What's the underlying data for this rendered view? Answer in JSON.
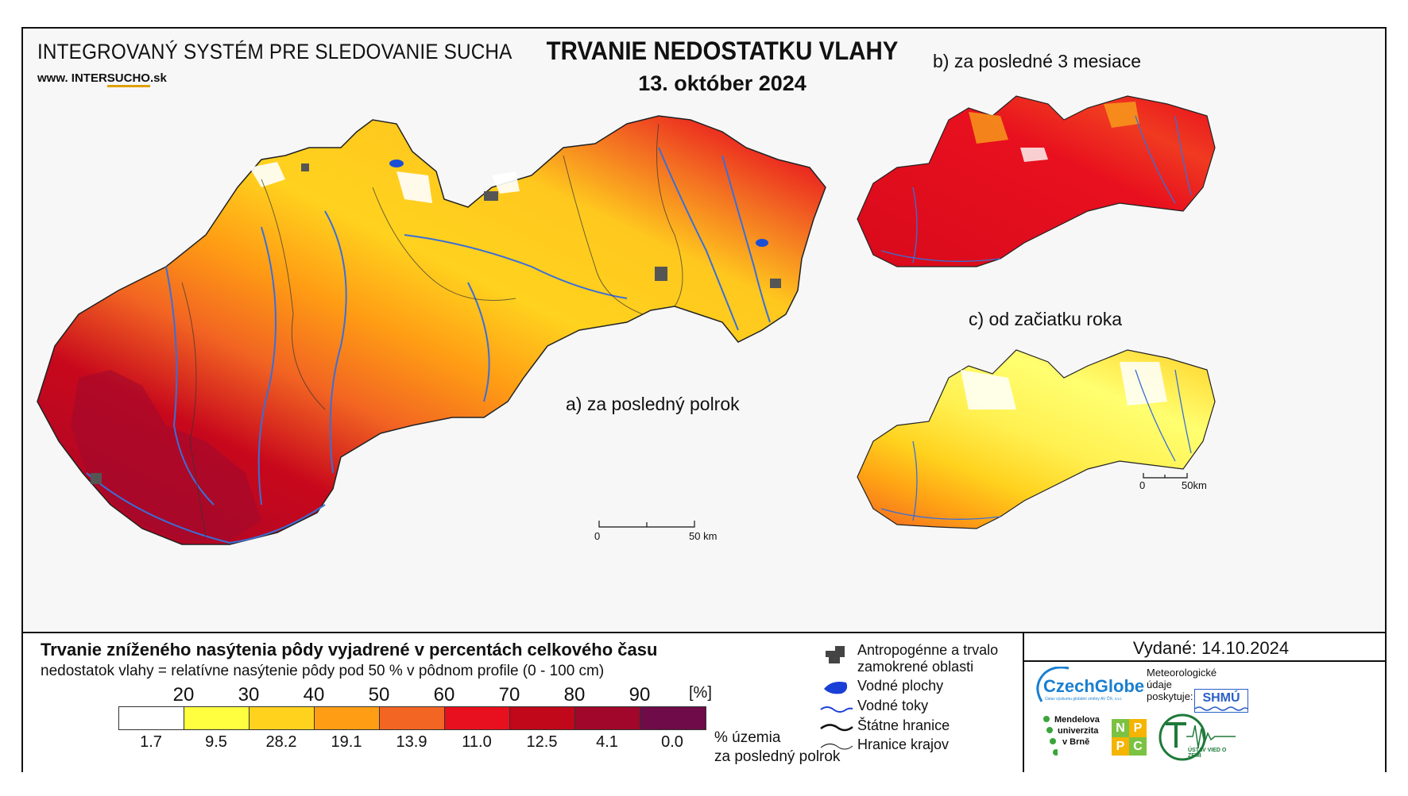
{
  "header": {
    "system_title": "INTEGROVANÝ SYSTÉM PRE SLEDOVANIE SUCHA",
    "website_prefix": "www.",
    "website_inter": "INTER",
    "website_sucho": "SUCHO",
    "website_suffix": ".sk",
    "main_title": "TRVANIE NEDOSTATKU VLAHY",
    "main_date": "13. október 2024"
  },
  "maps": {
    "a_label": "a) za posledný polrok",
    "b_label": "b) za posledné 3 mesiace",
    "c_label": "c) od začiatku roka",
    "scale_main_zero": "0",
    "scale_main_end": "50 km",
    "scale_small_zero": "0",
    "scale_small_end": "50km"
  },
  "legend": {
    "title": "Trvanie zníženého nasýtenia pôdy vyjadrené v percentách celkového času",
    "subtitle": "nedostatok vlahy = relatívne nasýtenie pôdy pod 50 % v pôdnom profile (0 - 100 cm)",
    "thresholds": [
      "20",
      "30",
      "40",
      "50",
      "60",
      "70",
      "80",
      "90"
    ],
    "unit": "[%]",
    "bin_colors": [
      "#ffffff",
      "#ffff40",
      "#ffd21e",
      "#ff9d14",
      "#f26522",
      "#e8101e",
      "#c0081a",
      "#a0072a",
      "#6e0b48"
    ],
    "percentages": [
      "1.7",
      "9.5",
      "28.2",
      "19.1",
      "13.9",
      "11.0",
      "12.5",
      "4.1",
      "0.0"
    ],
    "pct_label_line1": "% územia",
    "pct_label_line2": "za posledný polrok"
  },
  "symbols": {
    "anthropogenic_line1": "Antropogénne a trvalo",
    "anthropogenic_line2": "zamokrené oblasti",
    "water_bodies": "Vodné plochy",
    "water_courses": "Vodné toky",
    "state_borders": "Štátne hranice",
    "region_borders": "Hranice krajov"
  },
  "footer": {
    "issued": "Vydané: 14.10.2024",
    "meteo_line1": "Meteorologické",
    "meteo_line2": "údaje",
    "meteo_line3": "poskytuje:",
    "czechglobe": "CzechGlobe",
    "czechglobe_sub": "Ústav výzkumu globální změny AV ČR, v.v.i.",
    "shmu": "SHMÚ",
    "mendel_line1": "Mendelova",
    "mendel_line2": "univerzita",
    "mendel_line3": "v Brně",
    "nppc_n": "N",
    "nppc_p1": "P",
    "nppc_p2": "P",
    "nppc_c": "C",
    "uvz": "ÚSTAV VIED O ZEMI"
  }
}
